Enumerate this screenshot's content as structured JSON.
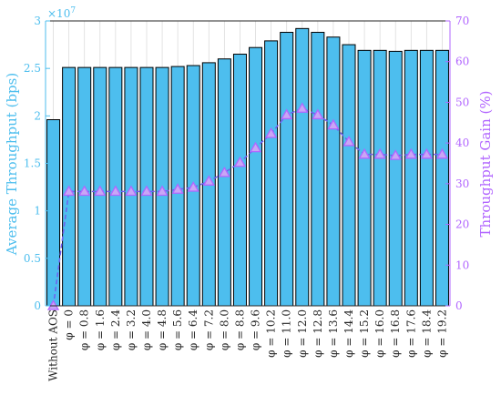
{
  "chart_data": {
    "type": "bar",
    "categories": [
      "Without AOS",
      "φ = 0",
      "φ = 0.8",
      "φ = 1.6",
      "φ = 2.4",
      "φ = 3.2",
      "φ = 4.0",
      "φ = 4.8",
      "φ = 5.6",
      "φ = 6.4",
      "φ = 7.2",
      "φ = 8.0",
      "φ = 8.8",
      "φ = 9.6",
      "φ = 10.2",
      "φ = 11.0",
      "φ = 12.0",
      "φ = 12.8",
      "φ = 13.6",
      "φ = 14.4",
      "φ = 15.2",
      "φ = 16.0",
      "φ = 16.8",
      "φ = 17.6",
      "φ = 18.4",
      "φ = 19.2"
    ],
    "series": [
      {
        "axis": "left",
        "kind": "bar",
        "color": "#4DBEEE",
        "values": [
          1.96,
          2.51,
          2.51,
          2.51,
          2.51,
          2.51,
          2.51,
          2.51,
          2.52,
          2.53,
          2.56,
          2.6,
          2.65,
          2.72,
          2.79,
          2.88,
          2.92,
          2.88,
          2.83,
          2.75,
          2.69,
          2.69,
          2.68,
          2.69,
          2.69,
          2.69
        ]
      },
      {
        "axis": "right",
        "kind": "line",
        "marker": "triangle",
        "color": "#B266FF",
        "line_color": "#7060F0",
        "values": [
          0,
          28.1,
          28.1,
          28.1,
          28.1,
          28.1,
          28.1,
          28.1,
          28.6,
          29.1,
          30.6,
          32.7,
          35.2,
          38.8,
          42.3,
          46.9,
          48.5,
          46.9,
          44.4,
          40.3,
          37.2,
          37.2,
          36.9,
          37.2,
          37.2,
          37.2
        ]
      }
    ],
    "left_axis": {
      "label": "Average Throughput (bps)",
      "color": "#4DBEEE",
      "ylim": [
        0,
        3
      ],
      "ticks": [
        "0",
        "0.5",
        "1",
        "1.5",
        "2",
        "2.5",
        "3"
      ],
      "multiplier": "×10",
      "exponent": "7"
    },
    "right_axis": {
      "label": "Throughput Gain (%)",
      "color": "#B266FF",
      "ylim": [
        0,
        70
      ],
      "ticks": [
        "0",
        "10",
        "20",
        "30",
        "40",
        "50",
        "60",
        "70"
      ]
    },
    "grid": "vertical",
    "legend": "none"
  }
}
